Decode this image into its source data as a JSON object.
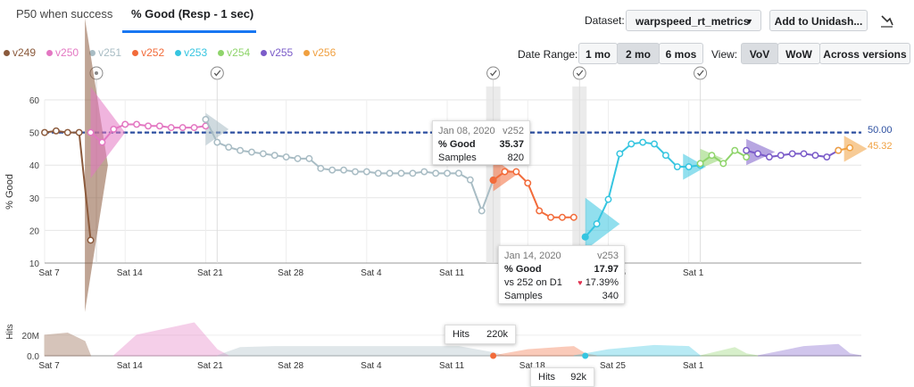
{
  "tabs": [
    {
      "label": "P50 when success",
      "active": false
    },
    {
      "label": "% Good (Resp - 1 sec)",
      "active": true
    }
  ],
  "dataset": {
    "label": "Dataset:",
    "value": "warpspeed_rt_metrics"
  },
  "add_button": "Add to Unidash...",
  "date_range": {
    "label": "Date Range:",
    "options": [
      "1 mo",
      "2 mo",
      "6 mos"
    ],
    "selected": "2 mo"
  },
  "view": {
    "label": "View:",
    "options": [
      "VoV",
      "WoW",
      "Across versions"
    ],
    "selected": "VoV"
  },
  "legend": [
    {
      "name": "v249",
      "color": "#8b5a3c"
    },
    {
      "name": "v250",
      "color": "#e377c2"
    },
    {
      "name": "v251",
      "color": "#a8bcc4"
    },
    {
      "name": "v252",
      "color": "#f26b3a"
    },
    {
      "name": "v253",
      "color": "#36c5e0"
    },
    {
      "name": "v254",
      "color": "#8fd46b"
    },
    {
      "name": "v255",
      "color": "#7b5cc9"
    },
    {
      "name": "v256",
      "color": "#f0a040"
    }
  ],
  "reference_line": {
    "value": 50.0,
    "label": "50.00",
    "color": "#2c4fa0"
  },
  "last_value_label": "45.32",
  "tooltip1": {
    "date": "Jan 08, 2020",
    "version": "v252",
    "metric_label": "% Good",
    "metric_value": "35.37",
    "samples_label": "Samples",
    "samples_value": "820"
  },
  "tooltip2": {
    "date": "Jan 14, 2020",
    "version": "v253",
    "metric_label": "% Good",
    "metric_value": "17.97",
    "compare_label": "vs 252 on D1",
    "compare_value": "17.39%",
    "samples_label": "Samples",
    "samples_value": "340"
  },
  "hits_tooltip1": {
    "label": "Hits",
    "value": "220k"
  },
  "hits_tooltip2": {
    "label": "Hits",
    "value": "92k"
  },
  "chart_data": [
    {
      "type": "line",
      "ylabel": "% Good",
      "ylim": [
        10,
        60
      ],
      "yticks": [
        10,
        20,
        30,
        40,
        50,
        60
      ],
      "xticks": [
        "Sat 7",
        "Sat 14",
        "Sat 21",
        "Sat 28",
        "Sat 4",
        "Sat 11",
        "Sat 18",
        "Sat 25",
        "Sat 1"
      ],
      "x_unit": "day index from Dec 7, 2019",
      "series": [
        {
          "name": "v249",
          "x": [
            0,
            1,
            2,
            3,
            4
          ],
          "values": [
            50,
            50.5,
            50,
            50,
            17
          ]
        },
        {
          "name": "v250",
          "x": [
            4,
            5,
            6,
            7,
            8,
            9,
            10,
            11,
            12,
            13,
            14
          ],
          "values": [
            50,
            47,
            51,
            52.5,
            52.5,
            52,
            52,
            51.5,
            51.5,
            51.5,
            52
          ]
        },
        {
          "name": "v251",
          "x": [
            14,
            15,
            16,
            17,
            18,
            19,
            20,
            21,
            22,
            23,
            24,
            25,
            26,
            27,
            28,
            29,
            30,
            31,
            32,
            33,
            34,
            35,
            36,
            37,
            38,
            39
          ],
          "values": [
            54,
            47,
            45.5,
            44.5,
            44,
            43.5,
            43,
            42.5,
            42,
            42,
            39,
            38.5,
            38.5,
            38,
            38,
            37.5,
            37.5,
            37.5,
            37.5,
            38,
            37.5,
            37.5,
            37.5,
            35.5,
            26,
            35.5
          ]
        },
        {
          "name": "v252",
          "x": [
            39,
            40,
            41,
            42,
            43,
            44,
            45,
            46
          ],
          "values": [
            35.4,
            38,
            38,
            34.5,
            26,
            24,
            24,
            24
          ]
        },
        {
          "name": "v253",
          "x": [
            47,
            48,
            49,
            50,
            51,
            52,
            53,
            54,
            55,
            56,
            57
          ],
          "values": [
            18,
            22,
            29.5,
            43.5,
            46.5,
            47,
            46.5,
            43,
            39.5,
            39.5,
            40
          ]
        },
        {
          "name": "v254",
          "x": [
            57,
            58,
            59,
            60,
            61
          ],
          "values": [
            40.5,
            43,
            40.5,
            44.5,
            42.5
          ]
        },
        {
          "name": "v255",
          "x": [
            61,
            62,
            63,
            64,
            65,
            66,
            67,
            68,
            69
          ],
          "values": [
            44.5,
            43.5,
            42.5,
            43,
            43.5,
            43.5,
            43,
            42.5,
            44.5
          ]
        },
        {
          "name": "v256",
          "x": [
            69,
            70
          ],
          "values": [
            44.5,
            45.32
          ]
        }
      ]
    },
    {
      "type": "area",
      "ylabel": "Hits",
      "yticks": [
        "0.0",
        "20M"
      ],
      "xticks": [
        "Sat 7",
        "Sat 14",
        "Sat 21",
        "Sat 28",
        "Sat 4",
        "Sat 11",
        "Sat 18",
        "Sat 25",
        "Sat 1"
      ]
    }
  ]
}
